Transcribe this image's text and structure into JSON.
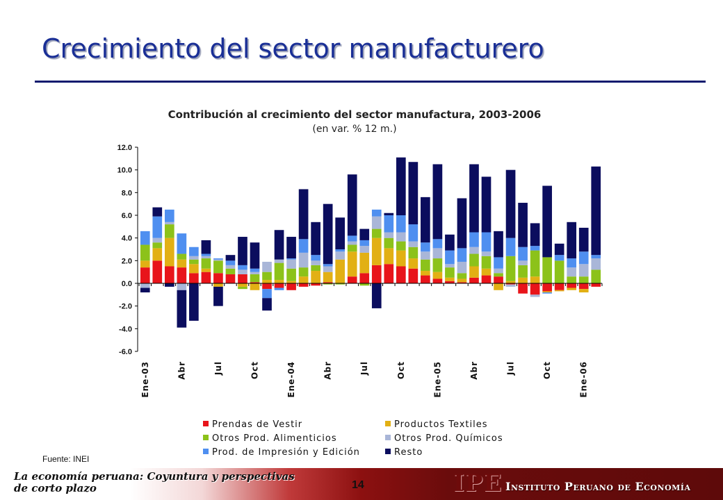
{
  "slide": {
    "title": "Crecimiento del sector manufacturero",
    "source": "Fuente: INEI",
    "page_number": "14",
    "footer_text": "La economía peruana: Coyuntura y perspectivas de corto plazo",
    "logo_text": "IPE",
    "institute_name": "Instituto Peruano de Economía"
  },
  "colors": {
    "title": "#1a2f96",
    "rule": "#0d1a6e",
    "logo": "#6e0b0b"
  },
  "chart_data": {
    "type": "stacked-bar",
    "title": "Contribución al crecimiento del sector manufactura, 2003-2006",
    "subtitle": "(en var. % 12 m.)",
    "ylim": [
      -6.0,
      12.0
    ],
    "yticks": [
      "12.0",
      "10.0",
      "8.0",
      "6.0",
      "4.0",
      "2.0",
      "0.0",
      "-2.0",
      "-4.0",
      "-6.0"
    ],
    "ytick_values": [
      12,
      10,
      8,
      6,
      4,
      2,
      0,
      -2,
      -4,
      -6
    ],
    "x_labels": [
      {
        "index": 0,
        "label": "Ene-03"
      },
      {
        "index": 3,
        "label": "Abr"
      },
      {
        "index": 6,
        "label": "Jul"
      },
      {
        "index": 9,
        "label": "Oct"
      },
      {
        "index": 12,
        "label": "Ene-04"
      },
      {
        "index": 15,
        "label": "Abr"
      },
      {
        "index": 18,
        "label": "Jul"
      },
      {
        "index": 21,
        "label": "Oct"
      },
      {
        "index": 24,
        "label": "Ene-05"
      },
      {
        "index": 27,
        "label": "Abr"
      },
      {
        "index": 30,
        "label": "Jul"
      },
      {
        "index": 33,
        "label": "Oct"
      },
      {
        "index": 36,
        "label": "Ene-06"
      }
    ],
    "legend_position": "bottom",
    "series": [
      {
        "name": "Prendas de Vestir",
        "color": "#e8141a",
        "values": [
          1.4,
          2.0,
          1.5,
          1.4,
          0.9,
          1.0,
          0.9,
          0.8,
          0.8,
          0.1,
          -0.5,
          -0.4,
          -0.6,
          -0.3,
          -0.2,
          0.1,
          0.0,
          0.6,
          0.9,
          1.6,
          1.7,
          1.5,
          1.3,
          0.7,
          0.4,
          0.2,
          0.1,
          0.5,
          0.7,
          0.6,
          -0.1,
          -0.9,
          -1.0,
          -0.7,
          -0.6,
          -0.4,
          -0.5,
          -0.3
        ]
      },
      {
        "name": "Productos Textiles",
        "color": "#e2b014",
        "values": [
          0.6,
          1.1,
          2.5,
          0.7,
          0.8,
          0.3,
          -0.3,
          0.0,
          -0.3,
          -0.6,
          0.3,
          0.3,
          0.2,
          0.6,
          1.1,
          0.9,
          2.1,
          2.2,
          1.8,
          2.4,
          1.4,
          1.4,
          0.9,
          0.4,
          0.6,
          0.3,
          0.3,
          1.0,
          0.6,
          -0.6,
          0.2,
          0.5,
          0.6,
          -0.1,
          -0.1,
          -0.2,
          -0.3,
          0.0
        ]
      },
      {
        "name": "Otros Prod. Alimenticios",
        "color": "#8cc21a",
        "values": [
          1.4,
          0.5,
          1.2,
          0.5,
          0.4,
          0.9,
          1.1,
          0.5,
          -0.2,
          0.7,
          0.7,
          1.5,
          1.1,
          0.8,
          0.5,
          -0.1,
          -0.1,
          0.6,
          -0.2,
          0.8,
          0.9,
          0.8,
          1.0,
          1.0,
          1.2,
          0.9,
          0.5,
          1.1,
          1.1,
          0.3,
          2.2,
          1.1,
          2.3,
          2.3,
          2.0,
          0.6,
          0.6,
          1.2
        ]
      },
      {
        "name": "Otros Prod. Químicos",
        "color": "#a9b6d8",
        "values": [
          -0.4,
          0.4,
          0.2,
          -0.6,
          0.3,
          0.2,
          0.1,
          0.3,
          0.4,
          0.2,
          0.9,
          0.3,
          0.8,
          1.3,
          0.4,
          0.5,
          0.7,
          0.3,
          0.6,
          1.1,
          0.5,
          0.8,
          0.5,
          0.7,
          0.9,
          0.3,
          1.0,
          0.6,
          0.4,
          0.4,
          -0.2,
          0.4,
          -0.2,
          0.0,
          0.0,
          0.8,
          1.1,
          1.0
        ]
      },
      {
        "name": "Prod. de Impresión y Edición",
        "color": "#4f8ff0",
        "values": [
          1.2,
          1.9,
          1.1,
          1.8,
          0.8,
          0.2,
          0.1,
          0.4,
          0.4,
          0.3,
          -0.8,
          -0.2,
          0.1,
          1.2,
          0.5,
          0.2,
          0.2,
          0.5,
          0.5,
          0.6,
          1.5,
          1.5,
          1.5,
          0.8,
          0.8,
          1.2,
          1.2,
          1.3,
          1.7,
          1.0,
          1.6,
          1.2,
          0.4,
          -0.1,
          0.5,
          0.8,
          1.1,
          0.3
        ]
      },
      {
        "name": "Resto",
        "color": "#0b0d5e",
        "values": [
          -0.4,
          0.8,
          -0.3,
          -3.3,
          -3.3,
          1.2,
          -1.7,
          0.5,
          2.5,
          2.3,
          -1.1,
          2.6,
          1.9,
          4.4,
          2.9,
          5.3,
          2.8,
          5.4,
          1.0,
          -2.2,
          0.2,
          5.1,
          5.5,
          4.0,
          6.6,
          1.4,
          4.4,
          6.0,
          4.9,
          2.3,
          6.0,
          3.9,
          2.0,
          6.3,
          1.0,
          3.2,
          2.1,
          7.8
        ]
      }
    ]
  }
}
